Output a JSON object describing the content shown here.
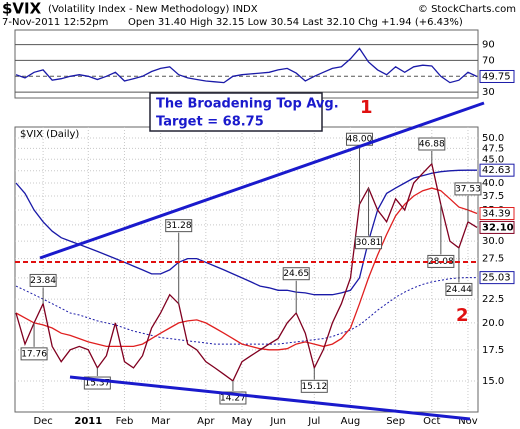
{
  "header": {
    "symbol": "$VIX",
    "name": "(Volatility Index - New Methodology) INDX",
    "source": "© StockCharts.com",
    "date": "7-Nov-2011 12:52pm",
    "quote": "Open 31.40 High 32.15 Low 30.54 Last 32.10 Chg +1.94 (+6.43%)"
  },
  "chart_data": [
    {
      "type": "line",
      "title": "$VIX (Daily)",
      "log_scale": true,
      "grid": true,
      "categories": [
        null,
        null,
        null,
        "Dec",
        null,
        null,
        null,
        null,
        "2011",
        null,
        null,
        null,
        "Feb",
        null,
        null,
        null,
        "Mar",
        null,
        null,
        null,
        null,
        "Apr",
        null,
        null,
        null,
        "May",
        null,
        null,
        null,
        "Jun",
        null,
        null,
        null,
        "Jul",
        null,
        null,
        null,
        "Aug",
        null,
        null,
        null,
        null,
        "Sep",
        null,
        null,
        null,
        "Oct",
        null,
        null,
        null,
        "Nov",
        null
      ],
      "ylim": [
        12.86,
        52.8
      ],
      "yticks": [
        {
          "value": 50,
          "label": "50.0"
        },
        47.5,
        {
          "value": 45,
          "label": "45.0"
        },
        42.5,
        {
          "value": 40,
          "label": "40.0"
        },
        37.5,
        {
          "value": 35,
          "label": "35.0"
        },
        32.5,
        {
          "value": 30,
          "label": "30.0"
        },
        27.5,
        {
          "value": 25,
          "label": "25.0"
        },
        22.5,
        {
          "value": 20,
          "label": "20.0"
        },
        17.5,
        {
          "value": 15,
          "label": "15.0"
        }
      ],
      "series": [
        {
          "color": "#1a1aa8",
          "dash": true,
          "values": [
            24,
            23.5,
            23,
            22.5,
            22,
            21.5,
            21,
            20.8,
            20.5,
            20.2,
            20,
            19.8,
            19.5,
            19.2,
            19,
            18.8,
            18.6,
            18.5,
            18.4,
            18.3,
            18.2,
            18.1,
            18,
            18,
            18,
            18,
            18,
            18,
            18,
            18,
            18.1,
            18.2,
            18.3,
            18.4,
            18.5,
            18.7,
            19,
            19.3,
            19.8,
            20.5,
            21.3,
            22,
            22.7,
            23.3,
            23.8,
            24.2,
            24.5,
            24.7,
            24.9,
            25,
            25.03,
            25.03
          ]
        },
        {
          "color": "#1a1aa8",
          "values": [
            40,
            38,
            35,
            33,
            31.5,
            30.5,
            30,
            29.5,
            29,
            28.5,
            28,
            27.5,
            27,
            26.5,
            26,
            25.5,
            25.5,
            26,
            27,
            27.5,
            27.5,
            27,
            26.5,
            26,
            25.5,
            25,
            24.5,
            24,
            23.8,
            23.5,
            23.5,
            23.3,
            23.2,
            23,
            23,
            23,
            23.2,
            23.5,
            25,
            30,
            35,
            38,
            39,
            40,
            41,
            41.5,
            42,
            42.3,
            42.5,
            42.6,
            42.63,
            42.63
          ]
        },
        {
          "color": "#e02020",
          "values": [
            21,
            20.5,
            20,
            19.8,
            19.5,
            19,
            18.8,
            18.5,
            18.2,
            18,
            17.8,
            17.8,
            17.8,
            17.8,
            18,
            18.5,
            19,
            19.5,
            20,
            20.2,
            20.3,
            20,
            19.5,
            19,
            18.5,
            18,
            17.8,
            17.6,
            17.5,
            17.5,
            17.6,
            18,
            18.2,
            18,
            17.8,
            18,
            18.5,
            19.5,
            22,
            25,
            28,
            31,
            34,
            36,
            37.5,
            38.5,
            39,
            38.5,
            37,
            35.5,
            35,
            34.39
          ]
        },
        {
          "color": "#800020",
          "values": [
            21,
            18,
            20,
            22,
            17.8,
            16.5,
            17.5,
            17.8,
            17.5,
            16,
            17,
            20,
            16.5,
            16,
            17,
            19.5,
            21,
            23,
            22,
            18,
            17.5,
            16.5,
            16,
            15.5,
            15,
            16.5,
            17,
            17.5,
            18,
            18.5,
            20,
            21,
            19,
            16,
            17.5,
            20,
            22,
            25,
            36,
            39,
            35,
            33,
            37,
            35,
            40,
            42,
            44,
            36,
            30,
            29,
            33,
            32.1
          ],
          "value_labels": [
            null,
            null,
            null,
            null,
            null,
            null,
            null,
            null,
            null,
            null,
            null,
            null,
            null,
            null,
            null,
            null,
            null,
            null,
            null,
            null,
            null,
            null,
            null,
            null,
            null,
            null,
            null,
            null,
            null,
            null,
            null,
            null,
            null,
            null,
            null,
            null,
            null,
            null,
            null,
            null,
            null,
            null,
            null,
            null,
            null,
            null,
            null,
            null,
            null,
            null,
            null,
            "32.10"
          ]
        }
      ],
      "point_labels": [
        {
          "at": 3,
          "value": 23.84
        },
        {
          "at": 2,
          "value": 17.76
        },
        {
          "at": 9,
          "value": 15.37
        },
        {
          "at": 18,
          "value": 31.28
        },
        {
          "at": 24,
          "value": 14.27
        },
        {
          "at": 31,
          "value": 24.65
        },
        {
          "at": 33,
          "value": 15.12
        },
        {
          "at": 38,
          "value": 48,
          "label": "48.00"
        },
        {
          "at": 39,
          "value": 30.81
        },
        {
          "at": 46,
          "value": 46.88
        },
        {
          "at": 47,
          "value": 28.08
        },
        {
          "at": 50,
          "value": 37.53
        },
        {
          "at": 49,
          "value": 24.44
        }
      ],
      "annotations": {
        "box": [
          "The Broadening Top Avg.",
          "Target = 68.75"
        ],
        "top": "1",
        "bottom": "2"
      }
    },
    {
      "type": "line",
      "ylim": [
        22.6,
        108.4
      ],
      "yticks": [
        30,
        70,
        90
      ],
      "series": [
        {
          "color": "#1a1aa8",
          "values": [
            52,
            48,
            55,
            58,
            45,
            47,
            50,
            52,
            50,
            46,
            50,
            55,
            44,
            47,
            50,
            56,
            60,
            62,
            52,
            48,
            46,
            44,
            43,
            42,
            50,
            52,
            53,
            54,
            55,
            58,
            60,
            54,
            44,
            50,
            55,
            60,
            62,
            72,
            85,
            68,
            58,
            52,
            62,
            55,
            62,
            64,
            63,
            50,
            42,
            45,
            55,
            49.75
          ]
        }
      ]
    }
  ]
}
